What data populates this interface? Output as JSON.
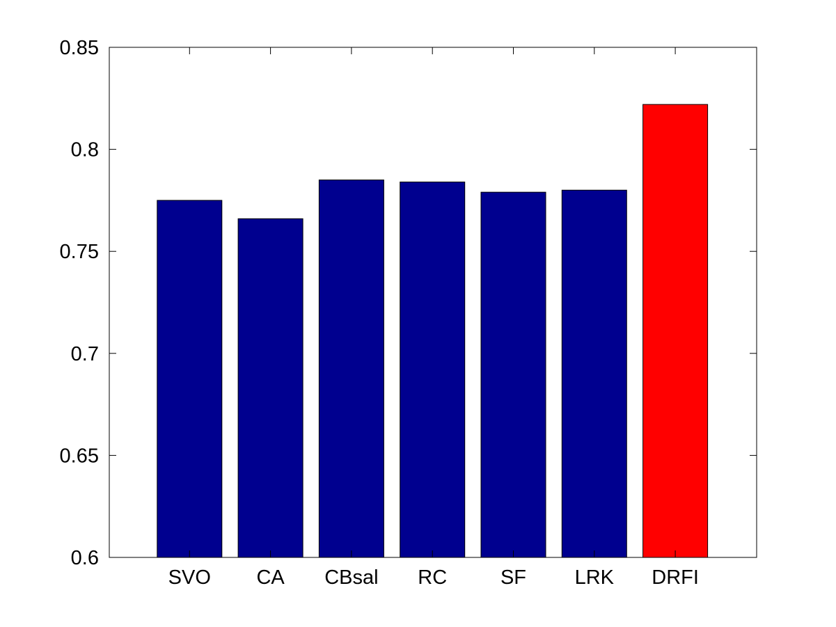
{
  "chart_data": {
    "type": "bar",
    "categories": [
      "SVO",
      "CA",
      "CBsal",
      "RC",
      "SF",
      "LRK",
      "DRFI"
    ],
    "values": [
      0.775,
      0.766,
      0.785,
      0.784,
      0.779,
      0.78,
      0.822
    ],
    "bar_colors": [
      "#00008f",
      "#00008f",
      "#00008f",
      "#00008f",
      "#00008f",
      "#00008f",
      "#ff0000"
    ],
    "ylim": [
      0.6,
      0.85
    ],
    "yticks": [
      0.6,
      0.65,
      0.7,
      0.75,
      0.8,
      0.85
    ],
    "ytick_labels": [
      "0.6",
      "0.65",
      "0.7",
      "0.75",
      "0.8",
      "0.85"
    ],
    "title": "",
    "xlabel": "",
    "ylabel": "",
    "grid": false,
    "legend": "none"
  }
}
